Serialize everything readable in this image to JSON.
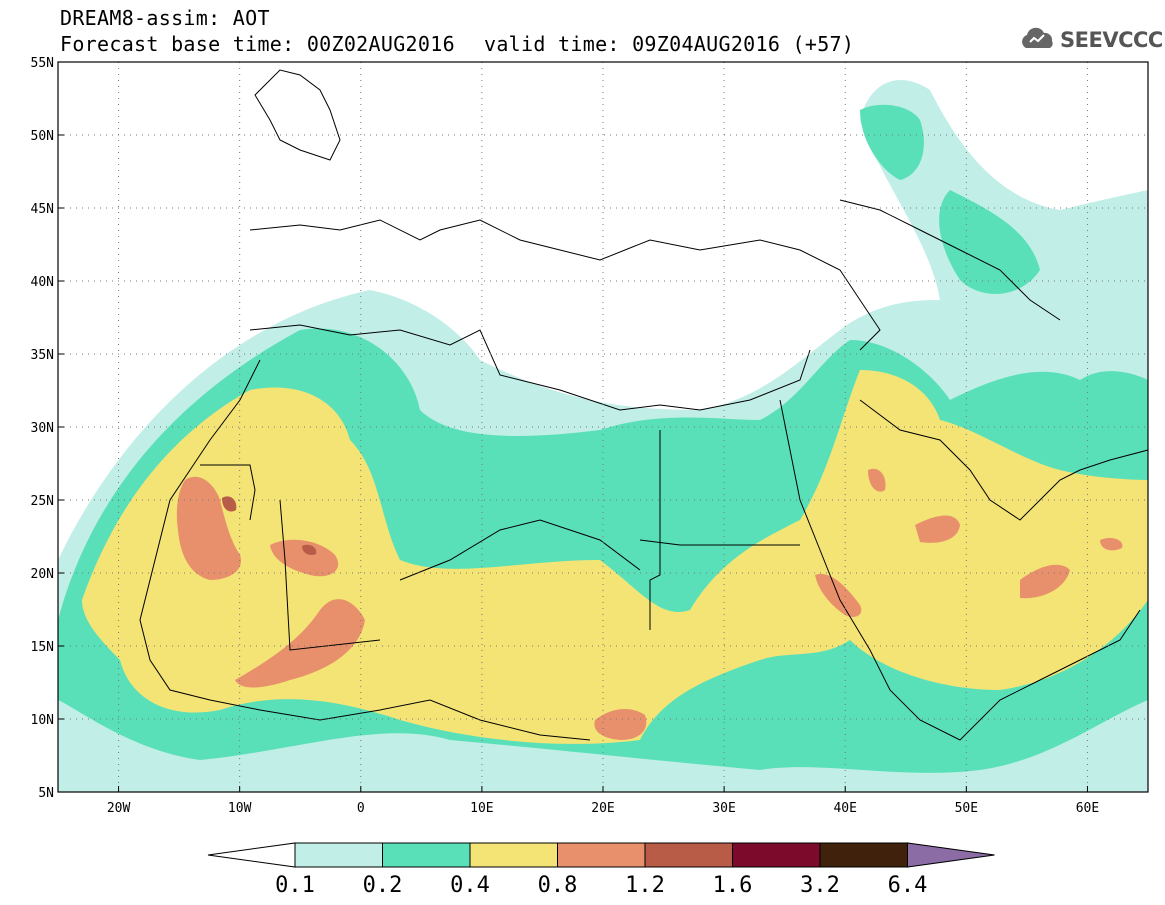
{
  "title": {
    "line1": "DREAM8-assim: AOT",
    "base_time": "Forecast base time: 00Z02AUG2016",
    "valid_time": "valid time: 09Z04AUG2016 (+57)"
  },
  "logo": {
    "icon": "cloud-logo-icon",
    "text": "SEEVCCC"
  },
  "map": {
    "lon_range": [
      -25,
      65
    ],
    "lat_range": [
      5,
      55
    ],
    "lon_ticks": [
      {
        "value": -20,
        "label": "20W"
      },
      {
        "value": -10,
        "label": "10W"
      },
      {
        "value": 0,
        "label": "0"
      },
      {
        "value": 10,
        "label": "10E"
      },
      {
        "value": 20,
        "label": "20E"
      },
      {
        "value": 30,
        "label": "30E"
      },
      {
        "value": 40,
        "label": "40E"
      },
      {
        "value": 50,
        "label": "50E"
      },
      {
        "value": 60,
        "label": "60E"
      }
    ],
    "lat_ticks": [
      {
        "value": 55,
        "label": "55N"
      },
      {
        "value": 50,
        "label": "50N"
      },
      {
        "value": 45,
        "label": "45N"
      },
      {
        "value": 40,
        "label": "40N"
      },
      {
        "value": 35,
        "label": "35N"
      },
      {
        "value": 30,
        "label": "30N"
      },
      {
        "value": 25,
        "label": "25N"
      },
      {
        "value": 20,
        "label": "20N"
      },
      {
        "value": 15,
        "label": "15N"
      },
      {
        "value": 10,
        "label": "10N"
      },
      {
        "value": 5,
        "label": "5N"
      }
    ],
    "grid": "dotted"
  },
  "legend": {
    "levels": [
      "0.1",
      "0.2",
      "0.4",
      "0.8",
      "1.2",
      "1.6",
      "3.2",
      "6.4"
    ],
    "colors": [
      "#ffffff",
      "#c2eee8",
      "#5ae0b8",
      "#f4e476",
      "#e8906c",
      "#b85c48",
      "#7c0a2a",
      "#40220c",
      "#8c6ca4"
    ]
  }
}
